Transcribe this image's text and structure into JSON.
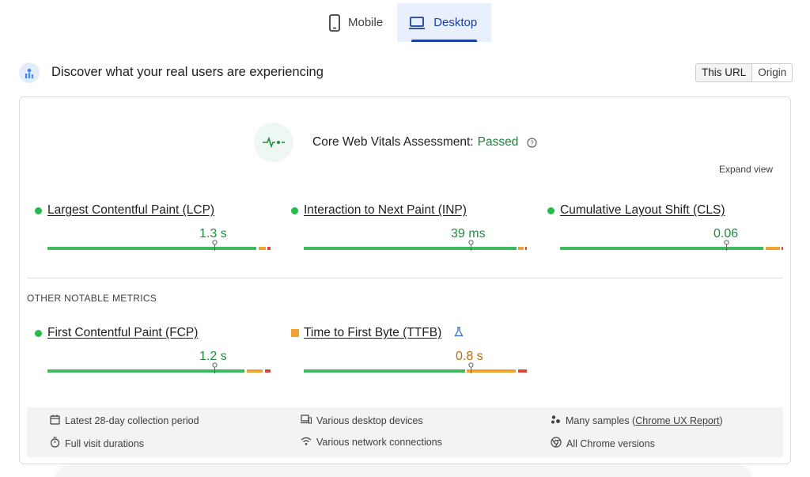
{
  "tabs": [
    {
      "label": "Mobile",
      "icon": "mobile-phone-icon",
      "active": false
    },
    {
      "label": "Desktop",
      "icon": "laptop-icon",
      "active": true
    }
  ],
  "header": {
    "title": "Discover what your real users are experiencing",
    "toggle": {
      "this_url": "This URL",
      "origin": "Origin",
      "selected": "This URL"
    }
  },
  "assessment": {
    "label": "Core Web Vitals Assessment:",
    "status": "Passed",
    "expand": "Expand view"
  },
  "core_metrics": [
    {
      "name": "Largest Contentful Paint (LCP)",
      "value": "1.3 s",
      "status": "good"
    },
    {
      "name": "Interaction to Next Paint (INP)",
      "value": "39 ms",
      "status": "good"
    },
    {
      "name": "Cumulative Layout Shift (CLS)",
      "value": "0.06",
      "status": "good"
    }
  ],
  "other_heading": "OTHER NOTABLE METRICS",
  "other_metrics": [
    {
      "name": "First Contentful Paint (FCP)",
      "value": "1.2 s",
      "status": "good"
    },
    {
      "name": "Time to First Byte (TTFB)",
      "value": "0.8 s",
      "status": "needs-improvement",
      "experimental_icon": "flask-icon"
    }
  ],
  "footer": {
    "period": "Latest 28-day collection period",
    "devices": "Various desktop devices",
    "samples_prefix": "Many samples (",
    "samples_link": "Chrome UX Report",
    "samples_suffix": ")",
    "durations": "Full visit durations",
    "connections": "Various network connections",
    "versions": "All Chrome versions"
  },
  "colors": {
    "good": "#3dba5e",
    "needs_improvement": "#f0a330",
    "poor": "#e34234",
    "accent": "#1a3fa5"
  }
}
